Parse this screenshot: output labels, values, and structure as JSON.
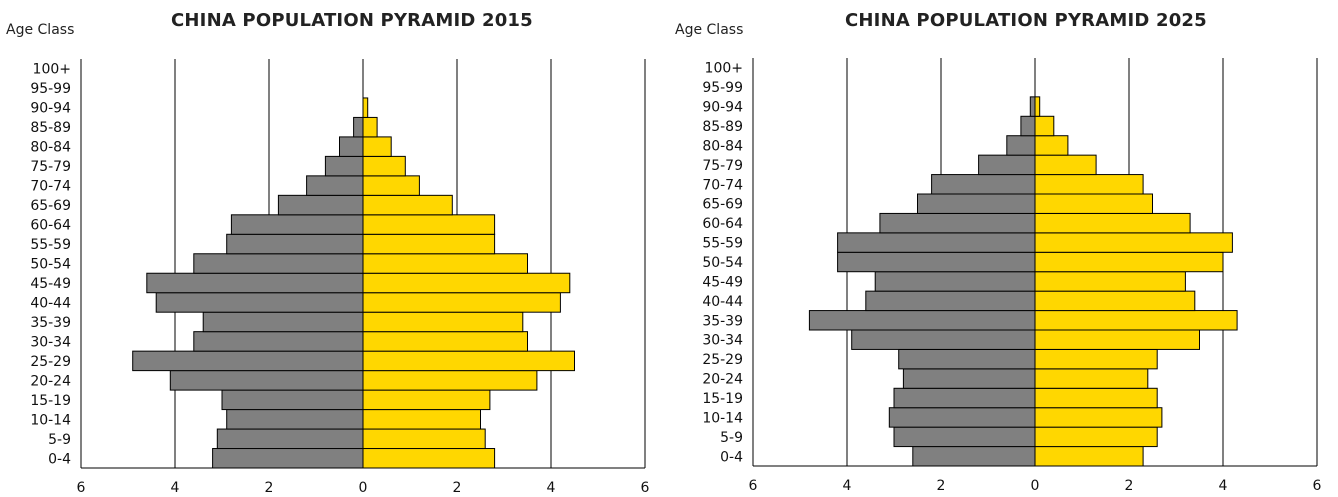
{
  "chart_data": [
    {
      "type": "bar",
      "orientation": "horizontal-pyramid",
      "title": "CHINA POPULATION PYRAMID 2015",
      "ylabel": "Age Class",
      "categories": [
        "0-4",
        "5-9",
        "10-14",
        "15-19",
        "20-24",
        "25-29",
        "30-34",
        "35-39",
        "40-44",
        "45-49",
        "50-54",
        "55-59",
        "60-64",
        "65-69",
        "70-74",
        "75-79",
        "80-84",
        "85-89",
        "90-94",
        "95-99",
        "100+"
      ],
      "xlim": [
        -6,
        6
      ],
      "x_ticks": [
        -6,
        -4,
        -2,
        0,
        2,
        4,
        6
      ],
      "x_tick_labels": [
        "6",
        "4",
        "2",
        "0",
        "2",
        "4",
        "6"
      ],
      "grid": "vertical",
      "series": [
        {
          "side": "left",
          "color": "#808080",
          "values": [
            3.2,
            3.1,
            2.9,
            3.0,
            4.1,
            4.9,
            3.6,
            3.4,
            4.4,
            4.6,
            3.6,
            2.9,
            2.8,
            1.8,
            1.2,
            0.8,
            0.5,
            0.2,
            0.0,
            0.0,
            0.0
          ]
        },
        {
          "side": "right",
          "color": "#FFD700",
          "values": [
            2.8,
            2.6,
            2.5,
            2.7,
            3.7,
            4.5,
            3.5,
            3.4,
            4.2,
            4.4,
            3.5,
            2.8,
            2.8,
            1.9,
            1.2,
            0.9,
            0.6,
            0.3,
            0.1,
            0.0,
            0.0
          ]
        }
      ]
    },
    {
      "type": "bar",
      "orientation": "horizontal-pyramid",
      "title": "CHINA POPULATION PYRAMID 2025",
      "ylabel": "Age Class",
      "categories": [
        "0-4",
        "5-9",
        "10-14",
        "15-19",
        "20-24",
        "25-29",
        "30-34",
        "35-39",
        "40-44",
        "45-49",
        "50-54",
        "55-59",
        "60-64",
        "65-69",
        "70-74",
        "75-79",
        "80-84",
        "85-89",
        "90-94",
        "95-99",
        "100+"
      ],
      "xlim": [
        -6,
        6
      ],
      "x_ticks": [
        -6,
        -4,
        -2,
        0,
        2,
        4,
        6
      ],
      "x_tick_labels": [
        "6",
        "4",
        "2",
        "0",
        "2",
        "4",
        "6"
      ],
      "grid": "vertical",
      "series": [
        {
          "side": "left",
          "color": "#808080",
          "values": [
            2.6,
            3.0,
            3.1,
            3.0,
            2.8,
            2.9,
            3.9,
            4.8,
            3.6,
            3.4,
            4.2,
            4.2,
            3.3,
            2.5,
            2.2,
            1.2,
            0.6,
            0.3,
            0.1,
            0.0,
            0.0
          ]
        },
        {
          "side": "right",
          "color": "#FFD700",
          "values": [
            2.3,
            2.6,
            2.7,
            2.6,
            2.4,
            2.6,
            3.5,
            4.3,
            3.4,
            3.2,
            4.0,
            4.2,
            3.3,
            2.5,
            2.3,
            1.3,
            0.7,
            0.4,
            0.1,
            0.0,
            0.0
          ]
        }
      ]
    }
  ]
}
